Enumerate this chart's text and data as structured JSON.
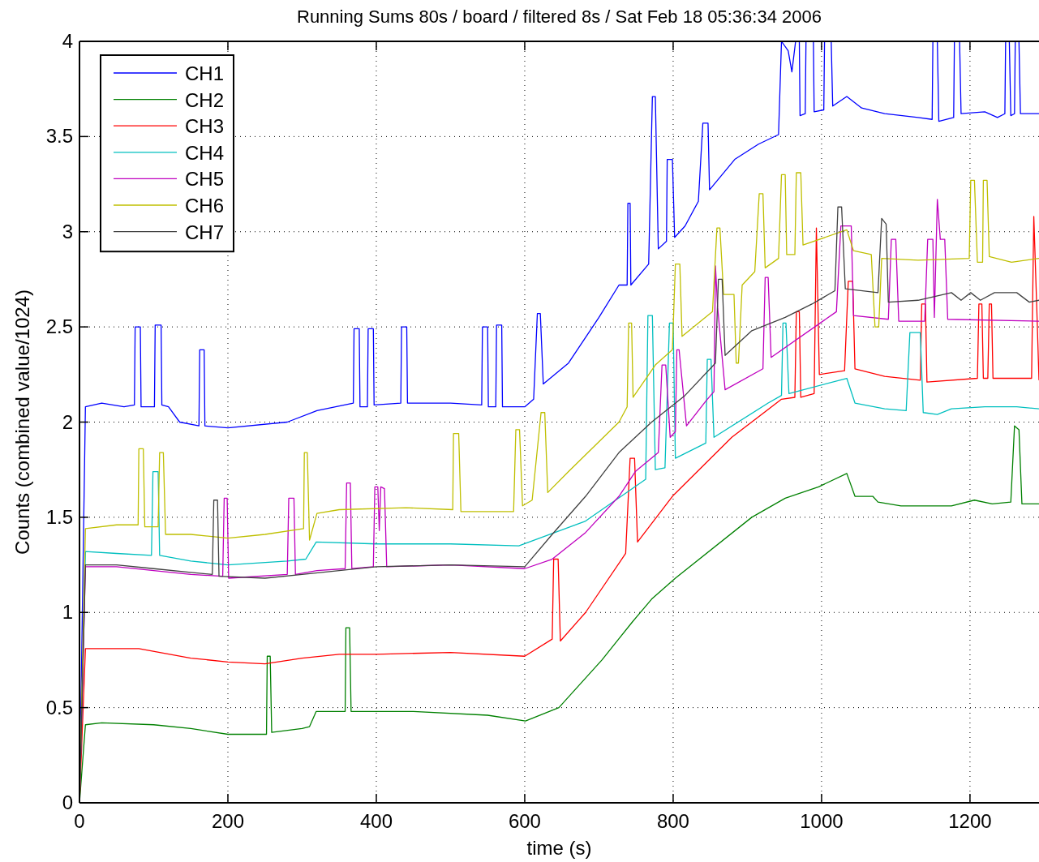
{
  "chart_data": {
    "type": "line",
    "title": "Running Sums 80s / board  / filtered 8s / Sat Feb 18 05:36:34 2006",
    "xlabel": "time (s)",
    "ylabel": "Counts (combined value/1024)",
    "xlim": [
      0,
      1293
    ],
    "xticks": [
      0,
      200,
      400,
      600,
      800,
      1000,
      1200
    ],
    "ylim": [
      0,
      4
    ],
    "yticks": [
      0,
      0.5,
      1,
      1.5,
      2,
      2.5,
      3,
      3.5,
      4
    ],
    "grid": true,
    "legend": "top left",
    "marker": "none",
    "line_style": "solid",
    "series": [
      {
        "name": "CH1",
        "color": "#0000ff",
        "x": [
          0,
          8,
          30,
          60,
          74,
          75,
          82,
          83,
          101,
          102,
          110,
          111,
          120,
          135,
          161,
          162,
          168,
          169,
          200,
          280,
          320,
          369,
          370,
          377,
          378,
          388,
          389,
          396,
          397,
          433,
          434,
          441,
          442,
          500,
          542,
          543,
          550,
          551,
          561,
          562,
          569,
          570,
          600,
          612,
          617,
          621,
          625,
          659,
          700,
          727,
          738,
          739,
          742,
          743,
          767,
          772,
          776,
          780,
          791,
          792,
          799,
          802,
          816,
          834,
          840,
          847,
          849,
          883,
          915,
          942,
          946,
          955,
          960,
          965,
          970,
          971,
          978,
          979,
          989,
          990,
          1003,
          1004,
          1013,
          1015,
          1034,
          1054,
          1085,
          1130,
          1149,
          1150,
          1156,
          1158,
          1178,
          1179,
          1186,
          1188,
          1220,
          1237,
          1247,
          1248,
          1253,
          1255,
          1260,
          1261,
          1266,
          1268,
          1293
        ],
        "values": [
          0,
          2.08,
          2.1,
          2.08,
          2.09,
          2.5,
          2.5,
          2.08,
          2.08,
          2.51,
          2.51,
          2.09,
          2.08,
          2.0,
          1.98,
          2.38,
          2.38,
          1.98,
          1.97,
          2.0,
          2.06,
          2.1,
          2.49,
          2.49,
          2.08,
          2.08,
          2.49,
          2.49,
          2.09,
          2.1,
          2.5,
          2.5,
          2.1,
          2.1,
          2.09,
          2.5,
          2.5,
          2.08,
          2.08,
          2.51,
          2.51,
          2.08,
          2.08,
          2.12,
          2.57,
          2.57,
          2.2,
          2.31,
          2.55,
          2.72,
          2.72,
          3.15,
          3.15,
          2.72,
          2.83,
          3.71,
          3.71,
          2.91,
          2.95,
          3.38,
          3.38,
          2.97,
          3.03,
          3.16,
          3.57,
          3.57,
          3.22,
          3.38,
          3.46,
          3.51,
          4,
          3.95,
          3.84,
          4,
          4,
          3.61,
          3.62,
          4,
          4,
          3.63,
          3.64,
          4,
          4,
          3.66,
          3.71,
          3.65,
          3.62,
          3.6,
          3.59,
          4,
          4,
          3.58,
          3.6,
          4,
          4,
          3.62,
          3.63,
          3.6,
          3.62,
          4,
          4,
          3.61,
          3.62,
          4,
          4,
          3.62,
          3.62
        ]
      },
      {
        "name": "CH2",
        "color": "#008000",
        "x": [
          0,
          8,
          30,
          100,
          150,
          200,
          252,
          253,
          257,
          259,
          300,
          310,
          319,
          358,
          359,
          364,
          366,
          450,
          550,
          601,
          646,
          704,
          745,
          771,
          803,
          906,
          951,
          996,
          1034,
          1045,
          1069,
          1076,
          1107,
          1175,
          1206,
          1230,
          1255,
          1260,
          1266,
          1270,
          1293
        ],
        "values": [
          0,
          0.41,
          0.42,
          0.41,
          0.39,
          0.36,
          0.36,
          0.77,
          0.77,
          0.37,
          0.39,
          0.4,
          0.48,
          0.48,
          0.92,
          0.92,
          0.48,
          0.48,
          0.46,
          0.43,
          0.5,
          0.75,
          0.95,
          1.07,
          1.18,
          1.5,
          1.6,
          1.66,
          1.73,
          1.61,
          1.61,
          1.58,
          1.56,
          1.56,
          1.59,
          1.57,
          1.58,
          1.98,
          1.96,
          1.57,
          1.57
        ]
      },
      {
        "name": "CH3",
        "color": "#ff0000",
        "x": [
          0,
          8,
          80,
          150,
          200,
          250,
          300,
          350,
          400,
          500,
          600,
          637,
          639,
          645,
          648,
          682,
          736,
          742,
          748,
          752,
          799,
          879,
          946,
          964,
          966,
          970,
          972,
          990,
          993,
          997,
          1031,
          1036,
          1042,
          1045,
          1085,
          1133,
          1135,
          1140,
          1142,
          1210,
          1212,
          1216,
          1218,
          1224,
          1226,
          1229,
          1231,
          1283,
          1286,
          1290,
          1293
        ],
        "values": [
          0,
          0.81,
          0.81,
          0.76,
          0.74,
          0.73,
          0.76,
          0.78,
          0.78,
          0.79,
          0.77,
          0.86,
          1.28,
          1.28,
          0.85,
          1.0,
          1.31,
          1.81,
          1.81,
          1.37,
          1.61,
          1.92,
          2.12,
          2.13,
          2.58,
          2.58,
          2.13,
          2.15,
          3.02,
          2.25,
          2.27,
          2.74,
          2.74,
          2.28,
          2.24,
          2.22,
          2.62,
          2.62,
          2.21,
          2.23,
          2.62,
          2.62,
          2.23,
          2.23,
          2.62,
          2.62,
          2.23,
          2.23,
          3.08,
          2.6,
          2.22
        ]
      },
      {
        "name": "CH4",
        "color": "#00bfbf",
        "x": [
          0,
          8,
          50,
          97,
          99,
          106,
          108,
          150,
          200,
          280,
          305,
          319,
          400,
          500,
          592,
          682,
          763,
          766,
          772,
          776,
          789,
          795,
          800,
          803,
          844,
          846,
          851,
          855,
          928,
          946,
          948,
          952,
          956,
          1034,
          1045,
          1085,
          1114,
          1119,
          1133,
          1137,
          1156,
          1175,
          1220,
          1263,
          1293
        ],
        "values": [
          0,
          1.32,
          1.31,
          1.3,
          1.74,
          1.74,
          1.3,
          1.27,
          1.25,
          1.27,
          1.28,
          1.37,
          1.36,
          1.36,
          1.35,
          1.48,
          1.7,
          2.56,
          2.56,
          1.75,
          1.76,
          2.52,
          2.52,
          1.81,
          1.89,
          2.33,
          2.33,
          1.92,
          2.1,
          2.14,
          2.52,
          2.52,
          2.15,
          2.23,
          2.1,
          2.07,
          2.06,
          2.47,
          2.47,
          2.05,
          2.04,
          2.07,
          2.08,
          2.08,
          2.07
        ]
      },
      {
        "name": "CH5",
        "color": "#bf00bf",
        "x": [
          0,
          8,
          50,
          100,
          150,
          193,
          195,
          199,
          201,
          280,
          282,
          289,
          291,
          320,
          358,
          360,
          365,
          367,
          396,
          398,
          402,
          404,
          406,
          411,
          414,
          500,
          600,
          637,
          682,
          727,
          749,
          780,
          785,
          790,
          796,
          803,
          805,
          808,
          818,
          844,
          855,
          857,
          860,
          870,
          921,
          924,
          928,
          932,
          1020,
          1026,
          1040,
          1043,
          1090,
          1094,
          1100,
          1104,
          1139,
          1143,
          1150,
          1152,
          1156,
          1160,
          1166,
          1170,
          1293
        ],
        "values": [
          0,
          1.24,
          1.24,
          1.22,
          1.2,
          1.19,
          1.6,
          1.6,
          1.18,
          1.2,
          1.6,
          1.6,
          1.2,
          1.22,
          1.23,
          1.68,
          1.68,
          1.23,
          1.24,
          1.66,
          1.66,
          1.43,
          1.66,
          1.65,
          1.24,
          1.25,
          1.23,
          1.28,
          1.42,
          1.61,
          1.74,
          1.84,
          2.3,
          2.3,
          1.92,
          1.95,
          2.38,
          2.38,
          1.98,
          2.11,
          2.16,
          2.82,
          2.6,
          2.17,
          2.28,
          2.76,
          2.76,
          2.34,
          2.58,
          3.03,
          3.03,
          2.56,
          2.54,
          2.96,
          2.96,
          2.53,
          2.53,
          2.96,
          2.96,
          2.55,
          3.17,
          2.96,
          2.96,
          2.54,
          2.53
        ]
      },
      {
        "name": "CH6",
        "color": "#bfbf00",
        "x": [
          0,
          8,
          50,
          79,
          80,
          86,
          88,
          106,
          108,
          113,
          116,
          150,
          200,
          250,
          302,
          303,
          307,
          310,
          320,
          350,
          440,
          503,
          504,
          511,
          514,
          585,
          588,
          593,
          597,
          610,
          622,
          627,
          631,
          659,
          727,
          738,
          740,
          744,
          746,
          776,
          799,
          803,
          809,
          812,
          853,
          859,
          863,
          868,
          882,
          885,
          888,
          893,
          910,
          916,
          921,
          924,
          942,
          946,
          951,
          953,
          964,
          966,
          972,
          975,
          1034,
          1043,
          1067,
          1072,
          1077,
          1081,
          1130,
          1199,
          1201,
          1206,
          1210,
          1217,
          1218,
          1223,
          1226,
          1256,
          1293
        ],
        "values": [
          0,
          1.44,
          1.46,
          1.46,
          1.86,
          1.86,
          1.45,
          1.45,
          1.84,
          1.84,
          1.41,
          1.41,
          1.39,
          1.41,
          1.44,
          1.84,
          1.84,
          1.38,
          1.52,
          1.54,
          1.55,
          1.54,
          1.94,
          1.94,
          1.53,
          1.53,
          1.96,
          1.96,
          1.56,
          1.59,
          2.05,
          2.05,
          1.63,
          1.74,
          2.0,
          2.08,
          2.52,
          2.52,
          2.13,
          2.3,
          2.38,
          2.83,
          2.83,
          2.45,
          2.58,
          3.02,
          3.02,
          2.67,
          2.67,
          2.31,
          2.31,
          2.72,
          2.79,
          3.2,
          3.2,
          2.81,
          2.86,
          3.3,
          3.3,
          2.88,
          2.88,
          3.31,
          3.31,
          2.93,
          3.01,
          2.9,
          2.88,
          2.5,
          2.5,
          2.86,
          2.85,
          2.86,
          3.27,
          3.27,
          2.84,
          2.84,
          3.27,
          3.27,
          2.87,
          2.84,
          2.86
        ]
      },
      {
        "name": "CH7",
        "color": "#404040",
        "x": [
          0,
          8,
          50,
          100,
          150,
          179,
          181,
          186,
          188,
          250,
          300,
          350,
          400,
          500,
          600,
          637,
          682,
          727,
          771,
          816,
          857,
          861,
          866,
          870,
          906,
          951,
          987,
          1018,
          1022,
          1027,
          1032,
          1076,
          1081,
          1087,
          1090,
          1130,
          1175,
          1188,
          1201,
          1214,
          1233,
          1263,
          1280,
          1293
        ],
        "values": [
          0,
          1.25,
          1.25,
          1.23,
          1.21,
          1.2,
          1.59,
          1.59,
          1.19,
          1.18,
          1.2,
          1.22,
          1.24,
          1.25,
          1.24,
          1.41,
          1.61,
          1.84,
          2.0,
          2.14,
          2.31,
          2.75,
          2.75,
          2.35,
          2.48,
          2.55,
          2.62,
          2.69,
          3.13,
          3.13,
          2.7,
          2.68,
          3.07,
          3.04,
          2.63,
          2.64,
          2.68,
          2.64,
          2.68,
          2.64,
          2.68,
          2.68,
          2.63,
          2.64
        ]
      }
    ]
  }
}
